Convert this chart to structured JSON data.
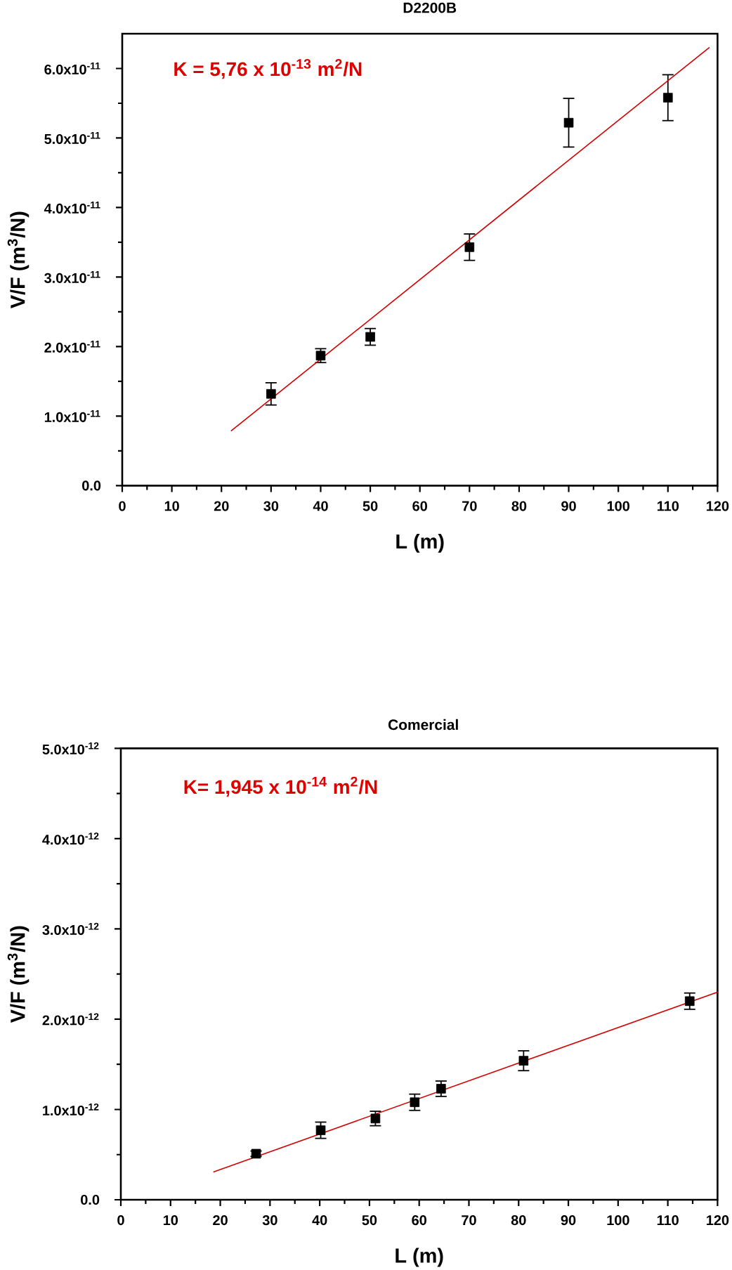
{
  "chart_data": [
    {
      "type": "scatter",
      "title": "D2200B",
      "xlabel": "L (m)",
      "ylabel": "V/F (m$^{3}$/N)",
      "annotations": [
        "K = 5,76 x 10$^{-13}$ m$^{2}$/N"
      ],
      "xlim": [
        0,
        120
      ],
      "ylim": [
        0,
        6.5e-11
      ],
      "xticks": [
        0,
        10,
        20,
        30,
        40,
        50,
        60,
        70,
        80,
        90,
        100,
        110,
        120,
        {
          "value": 5,
          "label": null
        },
        {
          "value": 15,
          "label": null
        },
        {
          "value": 25,
          "label": null
        },
        {
          "value": 35,
          "label": null
        },
        {
          "value": 45,
          "label": null
        },
        {
          "value": 55,
          "label": null
        },
        {
          "value": 65,
          "label": null
        },
        {
          "value": 75,
          "label": null
        },
        {
          "value": 85,
          "label": null
        },
        {
          "value": 95,
          "label": null
        },
        {
          "value": 105,
          "label": null
        },
        {
          "value": 115,
          "label": null
        }
      ],
      "yticks": [
        {
          "value": 0,
          "label": "0.0"
        },
        {
          "value": 1e-11,
          "label": "1.0x10$^{-11}$"
        },
        {
          "value": 2e-11,
          "label": "2.0x10$^{-11}$"
        },
        {
          "value": 3e-11,
          "label": "3.0x10$^{-11}$"
        },
        {
          "value": 4e-11,
          "label": "4.0x10$^{-11}$"
        },
        {
          "value": 5e-11,
          "label": "5.0x10$^{-11}$"
        },
        {
          "value": 6e-11,
          "label": "6.0x10$^{-11}$"
        },
        {
          "value": 5e-12,
          "label": null
        },
        {
          "value": 1.5e-11,
          "label": null
        },
        {
          "value": 2.5e-11,
          "label": null
        },
        {
          "value": 3.5e-11,
          "label": null
        },
        {
          "value": 4.5e-11,
          "label": null
        },
        {
          "value": 5.5e-11,
          "label": null
        }
      ],
      "series": [
        {
          "color": "#000000",
          "marker": "square",
          "x": [
            30,
            40,
            50,
            70,
            90,
            110
          ],
          "values": [
            1.32e-11,
            1.87e-11,
            2.14e-11,
            3.43e-11,
            5.22e-11,
            5.58e-11
          ],
          "errors": [
            1.6e-12,
            1e-12,
            1.2e-12,
            1.9e-12,
            3.5e-12,
            3.3e-12
          ]
        },
        {
          "type": "line",
          "color": "#d40000",
          "marker": "none",
          "x": [
            22,
            118.3
          ],
          "values": [
            7.9e-12,
            6.3e-11
          ]
        }
      ]
    },
    {
      "type": "scatter",
      "title": "Comercial",
      "xlabel": "L (m)",
      "ylabel": "V/F (m$^{3}$/N)",
      "annotations": [
        "K= 1,945 x 10$^{-14}$ m$^{2}$/N"
      ],
      "xlim": [
        0,
        120
      ],
      "ylim": [
        0,
        5e-12
      ],
      "xticks": [
        0,
        10,
        20,
        30,
        40,
        50,
        60,
        70,
        80,
        90,
        100,
        110,
        120,
        {
          "value": 5,
          "label": null
        },
        {
          "value": 15,
          "label": null
        },
        {
          "value": 25,
          "label": null
        },
        {
          "value": 35,
          "label": null
        },
        {
          "value": 45,
          "label": null
        },
        {
          "value": 55,
          "label": null
        },
        {
          "value": 65,
          "label": null
        },
        {
          "value": 75,
          "label": null
        },
        {
          "value": 85,
          "label": null
        },
        {
          "value": 95,
          "label": null
        },
        {
          "value": 105,
          "label": null
        },
        {
          "value": 115,
          "label": null
        }
      ],
      "yticks": [
        {
          "value": 0,
          "label": "0.0"
        },
        {
          "value": 1e-12,
          "label": "1.0x10$^{-12}$"
        },
        {
          "value": 2e-12,
          "label": "2.0x10$^{-12}$"
        },
        {
          "value": 3e-12,
          "label": "3.0x10$^{-12}$"
        },
        {
          "value": 4e-12,
          "label": "4.0x10$^{-12}$"
        },
        {
          "value": 5e-12,
          "label": "5.0x10$^{-12}$"
        },
        {
          "value": 5e-13,
          "label": null
        },
        {
          "value": 1.5e-12,
          "label": null
        },
        {
          "value": 2.5e-12,
          "label": null
        },
        {
          "value": 3.5e-12,
          "label": null
        },
        {
          "value": 4.5e-12,
          "label": null
        }
      ],
      "series": [
        {
          "color": "#000000",
          "marker": "square",
          "x": [
            27.2,
            40.2,
            51.2,
            59.1,
            64.4,
            81.0,
            114.4
          ],
          "values": [
            5.1e-13,
            7.7e-13,
            9e-13,
            1.08e-12,
            1.23e-12,
            1.54e-12,
            2.2e-12
          ],
          "errors": [
            3e-14,
            9e-14,
            8e-14,
            9e-14,
            8.5e-14,
            1.1e-13,
            9e-14
          ]
        },
        {
          "type": "line",
          "color": "#d40000",
          "marker": "none",
          "x": [
            18.7,
            120
          ],
          "values": [
            3.1e-13,
            2.3e-12
          ]
        }
      ]
    }
  ]
}
